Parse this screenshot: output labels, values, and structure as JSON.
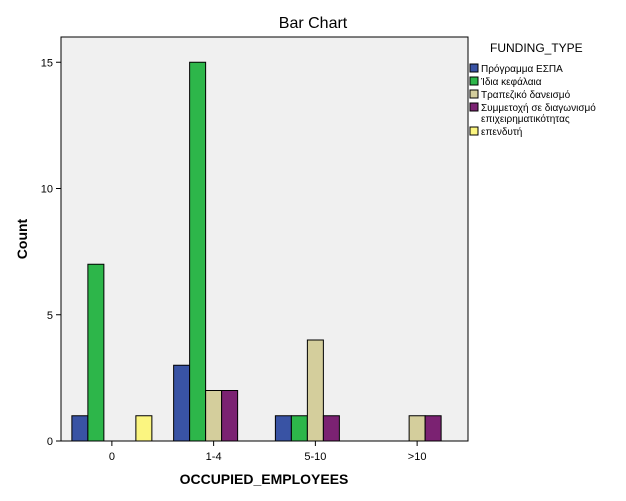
{
  "chart_data": {
    "type": "bar",
    "title": "Bar Chart",
    "xlabel": "OCCUPIED_EMPLOYEES",
    "ylabel": "Count",
    "categories": [
      "0",
      "1-4",
      "5-10",
      ">10"
    ],
    "ylim": [
      0,
      16
    ],
    "yticks": [
      0,
      5,
      10,
      15
    ],
    "grid": false,
    "legend": {
      "title": "FUNDING_TYPE",
      "placement": "right"
    },
    "series": [
      {
        "name": "Πρόγραμμα ΕΣΠΑ",
        "color": "#3953A4",
        "values": [
          1,
          3,
          1,
          0
        ]
      },
      {
        "name": "Ίδια κεφάλαια",
        "color": "#2DB64A",
        "values": [
          7,
          15,
          1,
          0
        ]
      },
      {
        "name": "Τραπεζικό δανεισμό",
        "color": "#D4CE9C",
        "values": [
          0,
          2,
          4,
          1
        ]
      },
      {
        "name": "Συμμετοχή σε διαγωνισμό επιχειρηματικότητας",
        "color": "#7B2272",
        "values": [
          0,
          2,
          1,
          1
        ]
      },
      {
        "name": "επενδυτή",
        "color": "#FBF580",
        "values": [
          1,
          0,
          0,
          0
        ]
      }
    ]
  }
}
